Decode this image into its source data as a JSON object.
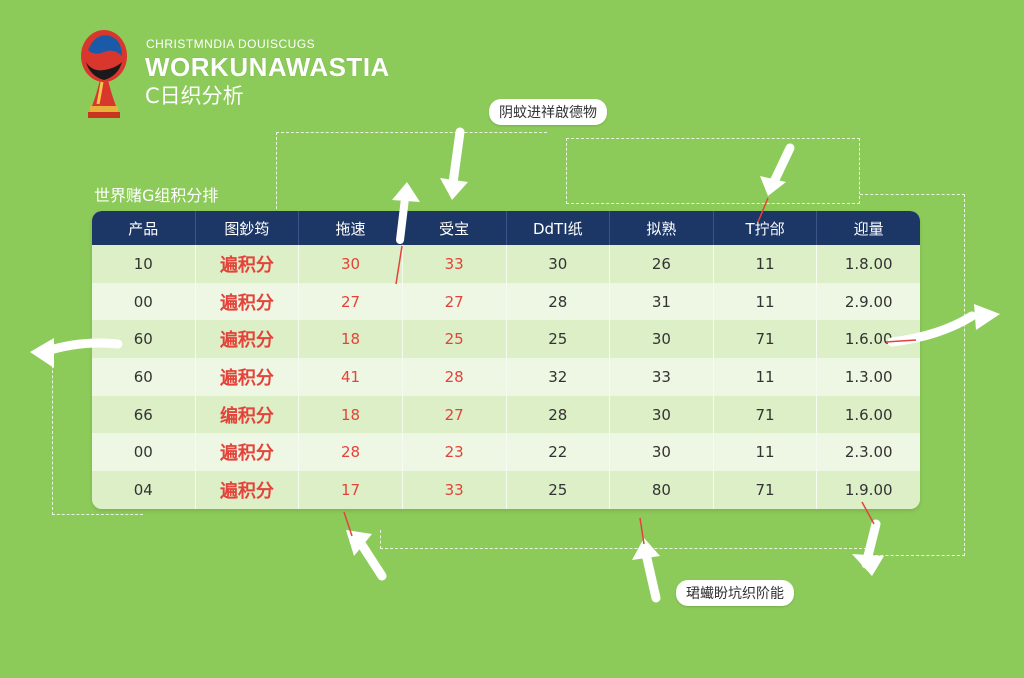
{
  "brand": {
    "line1": "CHRISTMNDIA DOUISCUGS",
    "line2": "WORKUNAWASTIA",
    "line3": "C日织分析"
  },
  "callouts": {
    "top": "阴蚊进祥啟德物",
    "bottom": "珺蠘盼坑织阶能"
  },
  "section_title": "世界赌G组积分排",
  "table": {
    "headers": [
      "产品",
      "图鈔筠",
      "拖速",
      "受宝",
      "DdTI纸",
      "拟熟",
      "T拧郃",
      "迎量"
    ],
    "rows": [
      [
        "10",
        "遍积分",
        "30",
        "33",
        "30",
        "26",
        "11",
        "1.8.00"
      ],
      [
        "00",
        "遍积分",
        "27",
        "27",
        "28",
        "31",
        "11",
        "2.9.00"
      ],
      [
        "60",
        "遍积分",
        "18",
        "25",
        "25",
        "30",
        "71",
        "1.6.00"
      ],
      [
        "60",
        "遍积分",
        "41",
        "28",
        "32",
        "33",
        "11",
        "1.3.00"
      ],
      [
        "66",
        "编积分",
        "18",
        "27",
        "28",
        "30",
        "71",
        "1.6.00"
      ],
      [
        "00",
        "遍积分",
        "28",
        "23",
        "22",
        "30",
        "11",
        "2.3.00"
      ],
      [
        "04",
        "遍积分",
        "17",
        "33",
        "25",
        "80",
        "71",
        "1.9.00"
      ]
    ]
  },
  "colors": {
    "background": "#8ccb59",
    "header": "#1c3766",
    "accent_red": "#e3433a"
  },
  "icons": {
    "logo": "world-cup-trophy-logo",
    "arrows": "curved-arrow-icons"
  }
}
